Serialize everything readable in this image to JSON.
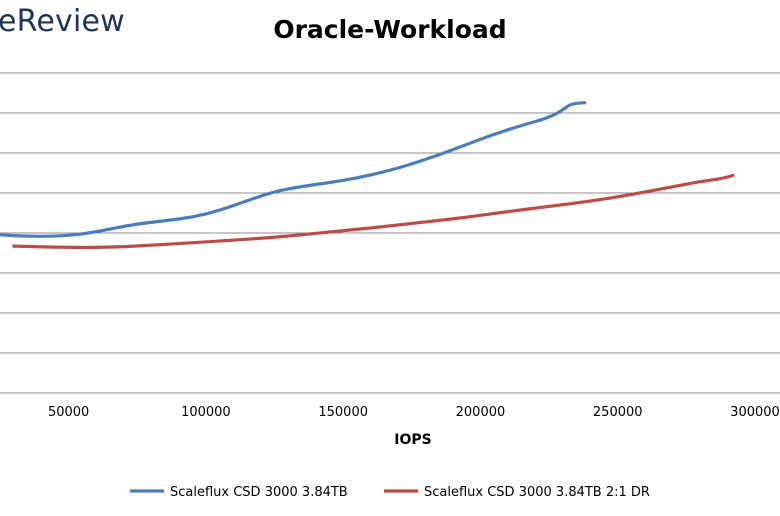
{
  "watermark": "eReview",
  "chart_data": {
    "type": "line",
    "title": "Oracle-Workload",
    "xlabel": "IOPS",
    "ylabel": "",
    "xlim": [
      25000,
      300000
    ],
    "x_ticks": [
      50000,
      100000,
      150000,
      200000,
      250000,
      300000
    ],
    "y_gridlines": 9,
    "grid": true,
    "legend_position": "bottom",
    "series": [
      {
        "name": "Scaleflux CSD 3000 3.84TB",
        "color": "#4a7ebb",
        "points": [
          [
            25000,
            0.455
          ],
          [
            35000,
            0.458
          ],
          [
            45000,
            0.458
          ],
          [
            55000,
            0.454
          ],
          [
            65000,
            0.444
          ],
          [
            75000,
            0.434
          ],
          [
            85000,
            0.428
          ],
          [
            95000,
            0.421
          ],
          [
            105000,
            0.408
          ],
          [
            115000,
            0.389
          ],
          [
            125000,
            0.371
          ],
          [
            135000,
            0.361
          ],
          [
            145000,
            0.354
          ],
          [
            155000,
            0.345
          ],
          [
            165000,
            0.333
          ],
          [
            175000,
            0.318
          ],
          [
            185000,
            0.3
          ],
          [
            195000,
            0.28
          ],
          [
            205000,
            0.26
          ],
          [
            215000,
            0.243
          ],
          [
            225000,
            0.228
          ],
          [
            230000,
            0.213
          ],
          [
            233000,
            0.201
          ],
          [
            238000,
            0.199
          ]
        ]
      },
      {
        "name": "Scaleflux CSD 3000 3.84TB 2:1 DR",
        "color": "#be4b48",
        "points": [
          [
            30000,
            0.477
          ],
          [
            45000,
            0.479
          ],
          [
            60000,
            0.48
          ],
          [
            75000,
            0.477
          ],
          [
            90000,
            0.472
          ],
          [
            105000,
            0.467
          ],
          [
            120000,
            0.462
          ],
          [
            135000,
            0.455
          ],
          [
            150000,
            0.447
          ],
          [
            165000,
            0.439
          ],
          [
            180000,
            0.43
          ],
          [
            195000,
            0.421
          ],
          [
            210000,
            0.41
          ],
          [
            225000,
            0.4
          ],
          [
            240000,
            0.39
          ],
          [
            255000,
            0.377
          ],
          [
            270000,
            0.362
          ],
          [
            280000,
            0.352
          ],
          [
            288000,
            0.346
          ],
          [
            292000,
            0.34
          ]
        ]
      }
    ]
  }
}
